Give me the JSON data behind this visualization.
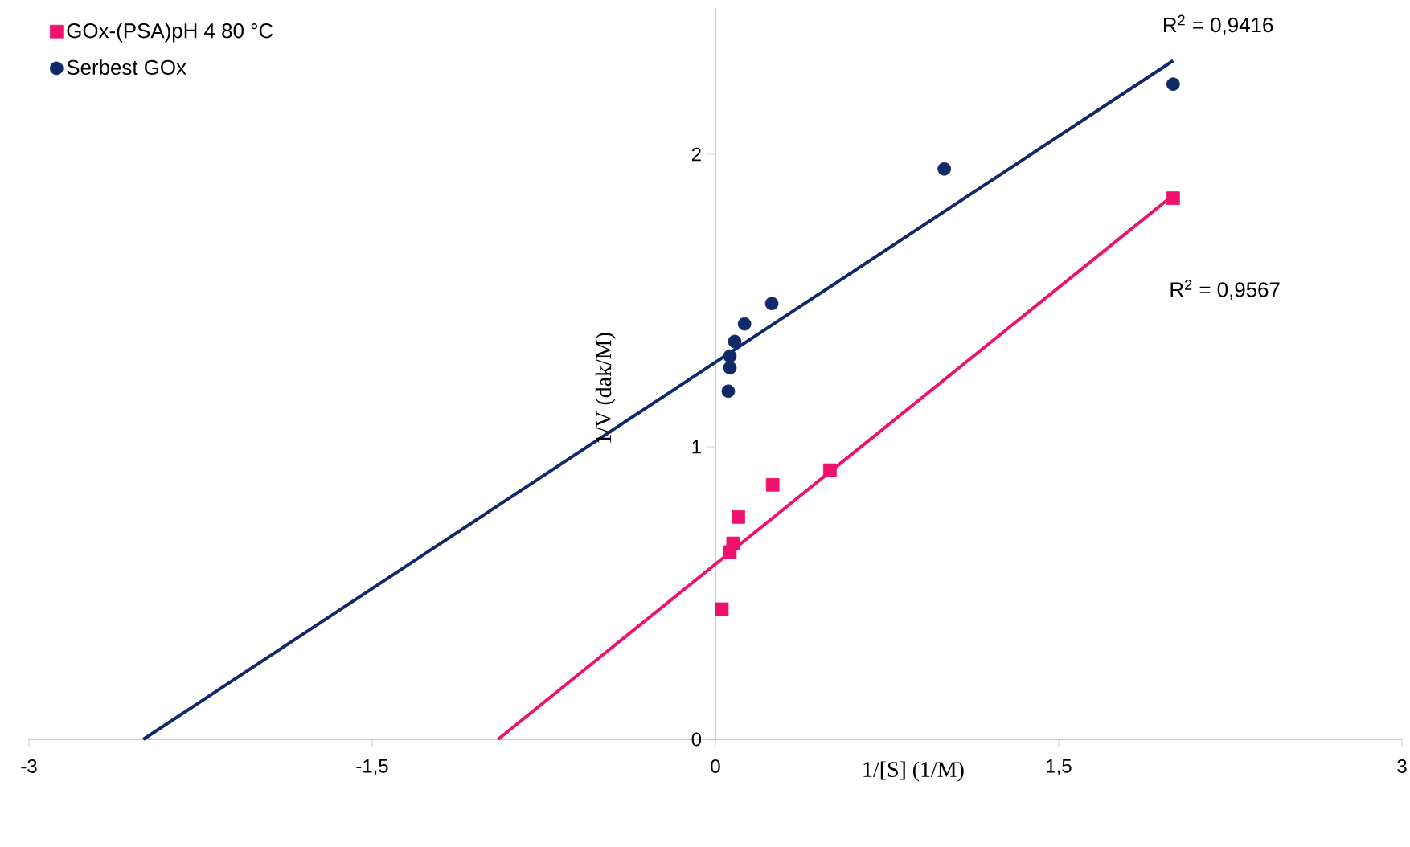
{
  "chart_data": {
    "type": "scatter",
    "xlabel": "1/[S] (1/M)",
    "ylabel": "1/V (dak/M)",
    "xlim": [
      -3,
      3
    ],
    "ylim": [
      0,
      2.5
    ],
    "xticks": [
      -3,
      {
        "value": -1.5,
        "label": "-1,5"
      },
      0,
      {
        "value": 1.5,
        "label": "1,5"
      },
      3
    ],
    "yticks": [
      0,
      1,
      2
    ],
    "legend": "top left",
    "series": [
      {
        "name": "GOx-(PSA)pH 4 80 °C",
        "color": "#f0106e",
        "marker": "square",
        "x": [
          2,
          0.5,
          0.25,
          0.1,
          0.077,
          0.063,
          0.028
        ],
        "values": [
          1.85,
          0.92,
          0.87,
          0.76,
          0.67,
          0.64,
          0.445
        ]
      },
      {
        "name": "Serbest GOx",
        "color": "#0f2a66",
        "marker": "circle",
        "x": [
          2,
          1,
          0.246,
          0.127,
          0.084,
          0.063,
          0.063,
          0.056
        ],
        "values": [
          2.24,
          1.95,
          1.49,
          1.42,
          1.36,
          1.31,
          1.27,
          1.19
        ]
      },
      {
        "type": "line",
        "color": "#f0106e",
        "marker": "none",
        "x": [
          -0.95,
          2
        ],
        "values": [
          0,
          1.86
        ]
      },
      {
        "type": "line",
        "color": "#0f2a66",
        "marker": "none",
        "x": [
          -2.5,
          2
        ],
        "values": [
          0,
          2.32
        ]
      }
    ],
    "annotations": [
      "R$^{2}$ = 0,9416",
      "R$^{2}$ = 0,9567"
    ]
  }
}
